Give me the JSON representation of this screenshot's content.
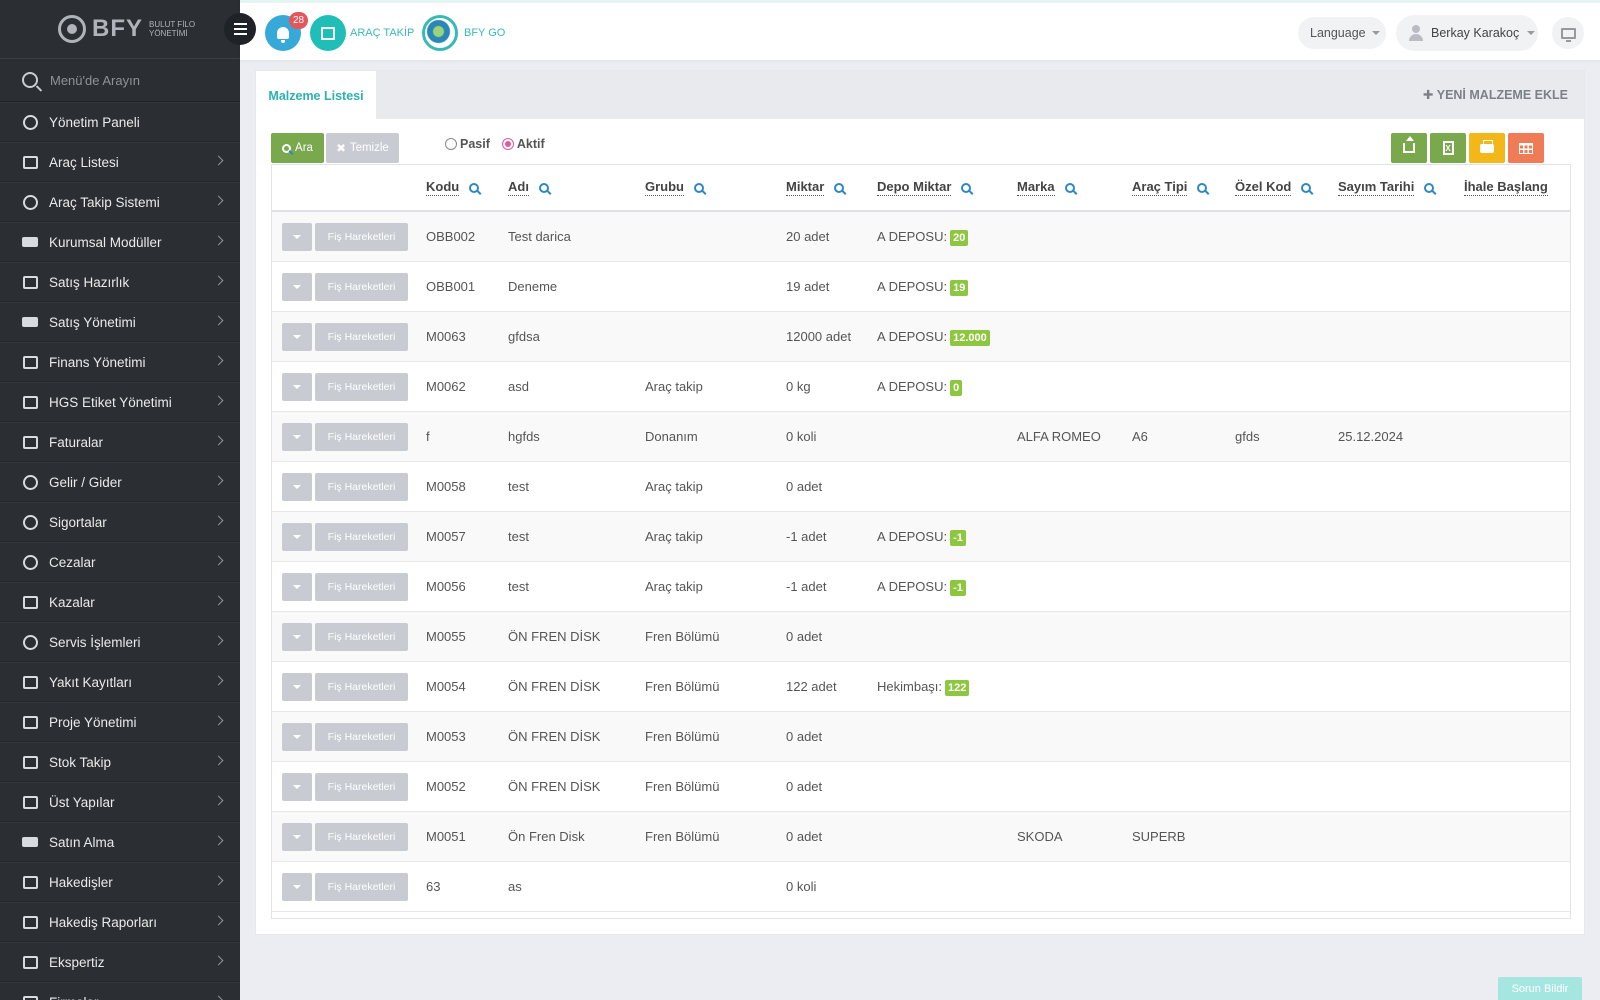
{
  "brand": {
    "name": "BFY",
    "subtitle": "BULUT FİLO YÖNETİMİ"
  },
  "sidebar": {
    "search_placeholder": "Menü'de Arayın",
    "items": [
      {
        "label": "Yönetim Paneli",
        "icon": "speedometer-icon",
        "chevron": false
      },
      {
        "label": "Araç Listesi",
        "icon": "bus-icon",
        "chevron": true
      },
      {
        "label": "Araç Takip Sistemi",
        "icon": "map-pin-icon",
        "chevron": true
      },
      {
        "label": "Kurumsal Modüller",
        "icon": "server-icon",
        "chevron": true
      },
      {
        "label": "Satış Hazırlık",
        "icon": "book-icon",
        "chevron": true
      },
      {
        "label": "Satış Yönetimi",
        "icon": "credit-card-icon",
        "chevron": true
      },
      {
        "label": "Finans Yönetimi",
        "icon": "money-icon",
        "chevron": true
      },
      {
        "label": "HGS Etiket Yönetimi",
        "icon": "tag-icon",
        "chevron": true
      },
      {
        "label": "Faturalar",
        "icon": "file-icon",
        "chevron": true
      },
      {
        "label": "Gelir / Gider",
        "icon": "clock-icon",
        "chevron": true
      },
      {
        "label": "Sigortalar",
        "icon": "umbrella-icon",
        "chevron": true
      },
      {
        "label": "Cezalar",
        "icon": "times-circle-icon",
        "chevron": true
      },
      {
        "label": "Kazalar",
        "icon": "car-crash-icon",
        "chevron": true
      },
      {
        "label": "Servis İşlemleri",
        "icon": "check-circle-icon",
        "chevron": true
      },
      {
        "label": "Yakıt Kayıtları",
        "icon": "fuel-icon",
        "chevron": true
      },
      {
        "label": "Proje Yönetimi",
        "icon": "briefcase-icon",
        "chevron": true
      },
      {
        "label": "Stok Takip",
        "icon": "inbox-icon",
        "chevron": true
      },
      {
        "label": "Üst Yapılar",
        "icon": "truck-icon",
        "chevron": true
      },
      {
        "label": "Satın Alma",
        "icon": "card-icon",
        "chevron": true
      },
      {
        "label": "Hakedişler",
        "icon": "truck-icon",
        "chevron": true
      },
      {
        "label": "Hakediş Raporları",
        "icon": "truck-icon",
        "chevron": true
      },
      {
        "label": "Ekspertiz",
        "icon": "list-icon",
        "chevron": true
      },
      {
        "label": "Firmalar",
        "icon": "building-icon",
        "chevron": true
      }
    ]
  },
  "topbar": {
    "notification_count": "28",
    "link_arac_takip": "ARAÇ TAKİP",
    "link_bfy_go": "BFY GO",
    "language": "Language",
    "user_name": "Berkay Karakoç"
  },
  "panel": {
    "tab_active": "Malzeme Listesi",
    "new_button": "YENİ MALZEME EKLE",
    "search_button": "Ara",
    "clear_button": "Temizle",
    "radio_passive": "Pasif",
    "radio_active": "Aktif",
    "radio_selected": "Aktif"
  },
  "table": {
    "columns": [
      "Kodu",
      "Adı",
      "Grubu",
      "Miktar",
      "Depo Miktar",
      "Marka",
      "Araç Tipi",
      "Özel Kod",
      "Sayım Tarihi",
      "İhale Başlang"
    ],
    "row_button": "Fiş Hareketleri",
    "rows": [
      {
        "kodu": "OBB002",
        "adi": "Test darica",
        "grubu": "",
        "miktar": "20 adet",
        "depo_label": "A DEPOSU:",
        "depo_value": "20",
        "marka": "",
        "arac_tipi": "",
        "ozel_kod": "",
        "sayim_tarihi": ""
      },
      {
        "kodu": "OBB001",
        "adi": "Deneme",
        "grubu": "",
        "miktar": "19 adet",
        "depo_label": "A DEPOSU:",
        "depo_value": "19",
        "marka": "",
        "arac_tipi": "",
        "ozel_kod": "",
        "sayim_tarihi": ""
      },
      {
        "kodu": "M0063",
        "adi": "gfdsa",
        "grubu": "",
        "miktar": "12000 adet",
        "depo_label": "A DEPOSU:",
        "depo_value": "12.000",
        "marka": "",
        "arac_tipi": "",
        "ozel_kod": "",
        "sayim_tarihi": ""
      },
      {
        "kodu": "M0062",
        "adi": "asd",
        "grubu": "Araç takip",
        "miktar": "0 kg",
        "depo_label": "A DEPOSU:",
        "depo_value": "0",
        "marka": "",
        "arac_tipi": "",
        "ozel_kod": "",
        "sayim_tarihi": ""
      },
      {
        "kodu": "f",
        "adi": "hgfds",
        "grubu": "Donanım",
        "miktar": "0 koli",
        "depo_label": "",
        "depo_value": "",
        "marka": "ALFA ROMEO",
        "arac_tipi": "A6",
        "ozel_kod": "gfds",
        "sayim_tarihi": "25.12.2024"
      },
      {
        "kodu": "M0058",
        "adi": "test",
        "grubu": "Araç takip",
        "miktar": "0 adet",
        "depo_label": "",
        "depo_value": "",
        "marka": "",
        "arac_tipi": "",
        "ozel_kod": "",
        "sayim_tarihi": ""
      },
      {
        "kodu": "M0057",
        "adi": "test",
        "grubu": "Araç takip",
        "miktar": "-1 adet",
        "depo_label": "A DEPOSU:",
        "depo_value": "-1",
        "marka": "",
        "arac_tipi": "",
        "ozel_kod": "",
        "sayim_tarihi": ""
      },
      {
        "kodu": "M0056",
        "adi": "test",
        "grubu": "Araç takip",
        "miktar": "-1 adet",
        "depo_label": "A DEPOSU:",
        "depo_value": "-1",
        "marka": "",
        "arac_tipi": "",
        "ozel_kod": "",
        "sayim_tarihi": ""
      },
      {
        "kodu": "M0055",
        "adi": "ÖN FREN DİSK",
        "grubu": "Fren Bölümü",
        "miktar": "0 adet",
        "depo_label": "",
        "depo_value": "",
        "marka": "",
        "arac_tipi": "",
        "ozel_kod": "",
        "sayim_tarihi": ""
      },
      {
        "kodu": "M0054",
        "adi": "ÖN FREN DİSK",
        "grubu": "Fren Bölümü",
        "miktar": "122 adet",
        "depo_label": "Hekimbaşı:",
        "depo_value": "122",
        "marka": "",
        "arac_tipi": "",
        "ozel_kod": "",
        "sayim_tarihi": ""
      },
      {
        "kodu": "M0053",
        "adi": "ÖN FREN DİSK",
        "grubu": "Fren Bölümü",
        "miktar": "0 adet",
        "depo_label": "",
        "depo_value": "",
        "marka": "",
        "arac_tipi": "",
        "ozel_kod": "",
        "sayim_tarihi": ""
      },
      {
        "kodu": "M0052",
        "adi": "ÖN FREN DİSK",
        "grubu": "Fren Bölümü",
        "miktar": "0 adet",
        "depo_label": "",
        "depo_value": "",
        "marka": "",
        "arac_tipi": "",
        "ozel_kod": "",
        "sayim_tarihi": ""
      },
      {
        "kodu": "M0051",
        "adi": "Ön Fren Disk",
        "grubu": "Fren Bölümü",
        "miktar": "0 adet",
        "depo_label": "",
        "depo_value": "",
        "marka": "SKODA",
        "arac_tipi": "SUPERB",
        "ozel_kod": "",
        "sayim_tarihi": ""
      },
      {
        "kodu": "63",
        "adi": "as",
        "grubu": "",
        "miktar": "0 koli",
        "depo_label": "",
        "depo_value": "",
        "marka": "",
        "arac_tipi": "",
        "ozel_kod": "",
        "sayim_tarihi": ""
      }
    ]
  },
  "footer": {
    "report_button": "Sorun Bildir"
  },
  "colors": {
    "sidebar_bg": "#2b2f33",
    "accent": "#2ab3b1",
    "search_green": "#7aa84d",
    "stock_badge": "#8dc63f",
    "export_orange": "#f07b57",
    "export_yellow": "#f3b719"
  }
}
